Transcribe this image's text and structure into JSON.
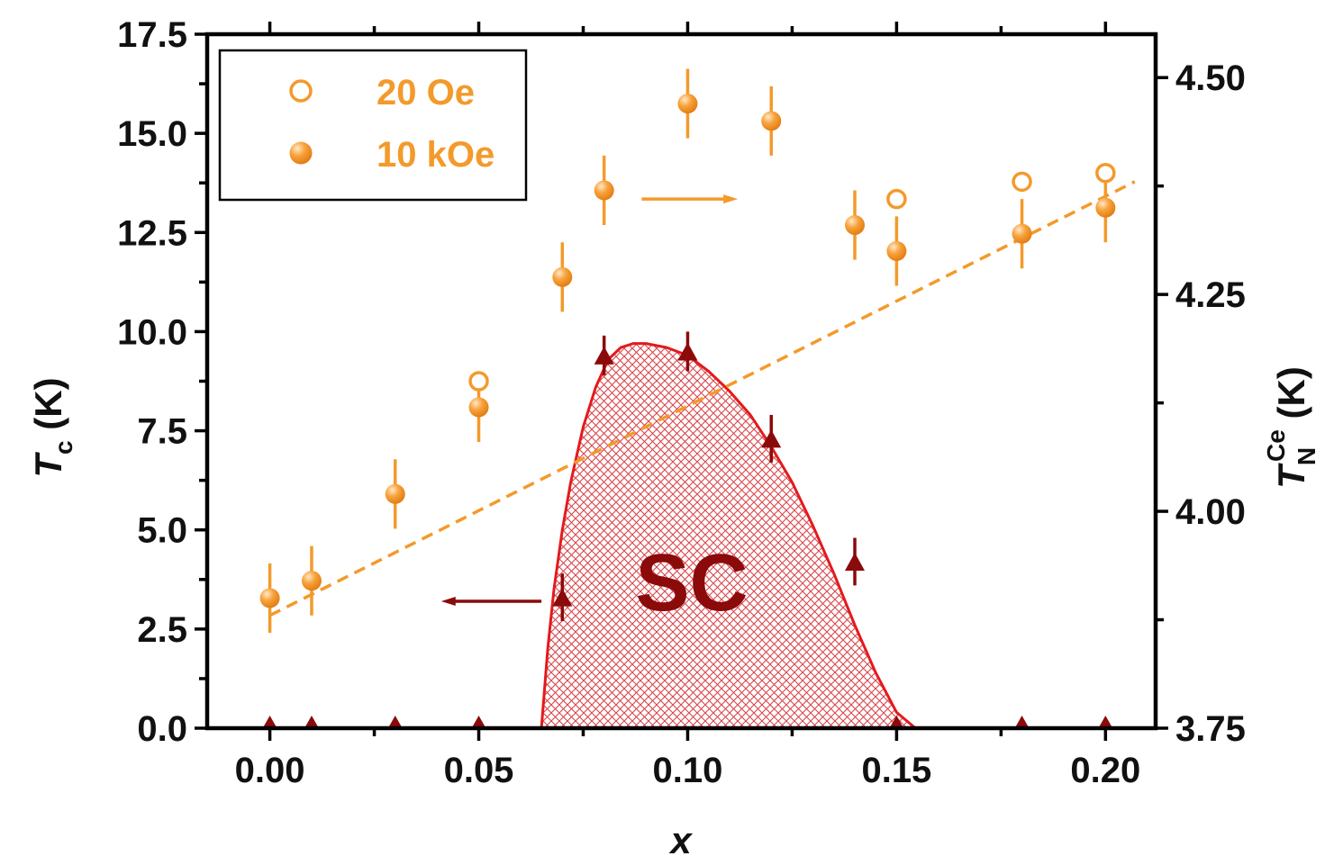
{
  "chart_data": {
    "type": "scatter",
    "colors": {
      "tn": "#f39a2b",
      "tc": "#8b0a0a",
      "sc_edge": "#e31a1c",
      "sc_hatch": "#d9464d",
      "axis": "#000000"
    },
    "x_axis": {
      "label": "x",
      "lim": [
        -0.015,
        0.212
      ],
      "ticks": [
        0.0,
        0.05,
        0.1,
        0.15,
        0.2
      ],
      "tick_labels": [
        "0.00",
        "0.05",
        "0.10",
        "0.15",
        "0.20"
      ]
    },
    "y_left": {
      "label_main": "T",
      "label_sub": "c",
      "label_unit": "(K)",
      "lim": [
        0,
        17.5
      ],
      "ticks": [
        0,
        2.5,
        5,
        7.5,
        10,
        12.5,
        15,
        17.5
      ],
      "tick_labels": [
        "0.0",
        "2.5",
        "5.0",
        "7.5",
        "10.0",
        "12.5",
        "15.0",
        "17.5"
      ]
    },
    "y_right": {
      "label_main": "T",
      "label_sub": "N",
      "label_sup": "Ce",
      "label_unit": "(K)",
      "lim": [
        3.75,
        4.55
      ],
      "ticks": [
        3.75,
        4.0,
        4.25,
        4.5
      ],
      "tick_labels": [
        "3.75",
        "4.00",
        "4.25",
        "4.50"
      ]
    },
    "legend": [
      {
        "label": "20 Oe",
        "marker": "open-circle"
      },
      {
        "label": "10 kOe",
        "marker": "filled-circle"
      }
    ],
    "annotation": "SC",
    "series": [
      {
        "name": "10 kOe",
        "axis": "right",
        "marker": "filled-circle",
        "x": [
          0.0,
          0.01,
          0.03,
          0.05,
          0.07,
          0.08,
          0.1,
          0.12,
          0.14,
          0.15,
          0.18,
          0.2
        ],
        "y": [
          3.9,
          3.92,
          4.02,
          4.12,
          4.27,
          4.37,
          4.47,
          4.45,
          4.33,
          4.3,
          4.32,
          4.35
        ],
        "yerr": [
          0.04,
          0.04,
          0.04,
          0.04,
          0.04,
          0.04,
          0.04,
          0.04,
          0.04,
          0.04,
          0.04,
          0.04
        ]
      },
      {
        "name": "20 Oe",
        "axis": "right",
        "marker": "open-circle",
        "x": [
          0.05,
          0.15,
          0.18,
          0.2
        ],
        "y": [
          4.15,
          4.36,
          4.38,
          4.39
        ],
        "yerr": [
          0.0,
          0.0,
          0.0,
          0.0
        ]
      },
      {
        "name": "Tc",
        "axis": "left",
        "marker": "filled-triangle",
        "x": [
          0.0,
          0.01,
          0.03,
          0.05,
          0.07,
          0.08,
          0.1,
          0.12,
          0.14,
          0.15,
          0.18,
          0.2
        ],
        "y": [
          0.0,
          0.0,
          0.0,
          0.0,
          3.3,
          9.4,
          9.5,
          7.3,
          4.2,
          0.0,
          0.0,
          0.0
        ],
        "yerr": [
          0.0,
          0.0,
          0.0,
          0.0,
          0.6,
          0.5,
          0.5,
          0.6,
          0.6,
          0.0,
          0.0,
          0.0
        ]
      }
    ],
    "fit_line": {
      "axis": "right",
      "x": [
        0.0,
        0.207
      ],
      "y": [
        3.88,
        4.38
      ]
    },
    "sc_dome": {
      "axis": "left",
      "x": [
        0.065,
        0.0665,
        0.068,
        0.07,
        0.072,
        0.075,
        0.078,
        0.081,
        0.084,
        0.087,
        0.09,
        0.095,
        0.1,
        0.105,
        0.11,
        0.115,
        0.12,
        0.125,
        0.13,
        0.135,
        0.14,
        0.145,
        0.15,
        0.1545
      ],
      "y": [
        0.0,
        2.0,
        3.5,
        5.0,
        6.2,
        7.6,
        8.6,
        9.3,
        9.6,
        9.7,
        9.7,
        9.6,
        9.4,
        9.0,
        8.5,
        7.9,
        7.1,
        6.2,
        5.1,
        3.9,
        2.6,
        1.4,
        0.4,
        0.0
      ]
    },
    "arrows": [
      {
        "axis": "right",
        "from": [
          0.089,
          4.36
        ],
        "to": [
          0.112,
          4.36
        ]
      },
      {
        "axis": "left",
        "from": [
          0.065,
          3.2
        ],
        "to": [
          0.041,
          3.2
        ]
      }
    ]
  }
}
